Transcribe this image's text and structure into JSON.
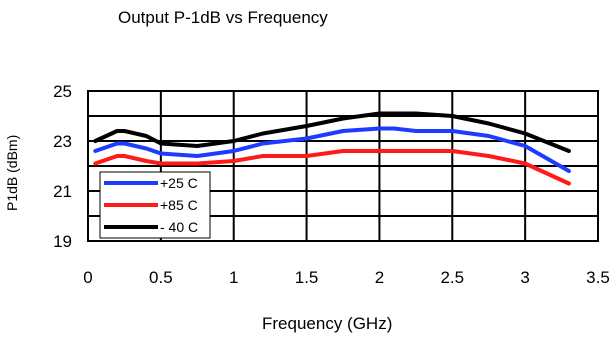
{
  "chart_data": {
    "type": "line",
    "title": "Output P-1dB vs Frequency",
    "xlabel": "Frequency (GHz)",
    "ylabel": "P1dB (dBm)",
    "xlim": [
      0,
      3.5
    ],
    "ylim": [
      19,
      25
    ],
    "x_ticks": [
      "0",
      "0.5",
      "1",
      "1.5",
      "2",
      "2.5",
      "3",
      "3.5"
    ],
    "y_ticks": [
      "19",
      "21",
      "23",
      "25"
    ],
    "grid": true,
    "legend_position": "bottom-left",
    "series": [
      {
        "name": "+25 C",
        "color": "#1e3cff",
        "x": [
          0.05,
          0.2,
          0.25,
          0.4,
          0.5,
          0.75,
          1.0,
          1.2,
          1.5,
          1.75,
          2.0,
          2.1,
          2.25,
          2.5,
          2.75,
          3.0,
          3.3
        ],
        "y": [
          22.6,
          22.9,
          22.9,
          22.7,
          22.5,
          22.4,
          22.6,
          22.9,
          23.1,
          23.4,
          23.5,
          23.5,
          23.4,
          23.4,
          23.2,
          22.8,
          21.8
        ]
      },
      {
        "name": "+85 C",
        "color": "#ff1a1a",
        "x": [
          0.05,
          0.2,
          0.25,
          0.4,
          0.5,
          0.75,
          1.0,
          1.2,
          1.5,
          1.75,
          2.0,
          2.25,
          2.5,
          2.75,
          3.0,
          3.3
        ],
        "y": [
          22.1,
          22.4,
          22.4,
          22.2,
          22.1,
          22.1,
          22.2,
          22.4,
          22.4,
          22.6,
          22.6,
          22.6,
          22.6,
          22.4,
          22.1,
          21.3
        ]
      },
      {
        "name": "- 40 C",
        "color": "#000000",
        "x": [
          0.05,
          0.2,
          0.25,
          0.4,
          0.5,
          0.75,
          1.0,
          1.2,
          1.4,
          1.5,
          1.75,
          2.0,
          2.25,
          2.5,
          2.75,
          3.0,
          3.3
        ],
        "y": [
          23.0,
          23.4,
          23.4,
          23.2,
          22.9,
          22.8,
          23.0,
          23.3,
          23.5,
          23.6,
          23.9,
          24.1,
          24.1,
          24.0,
          23.7,
          23.3,
          22.6
        ]
      }
    ]
  }
}
